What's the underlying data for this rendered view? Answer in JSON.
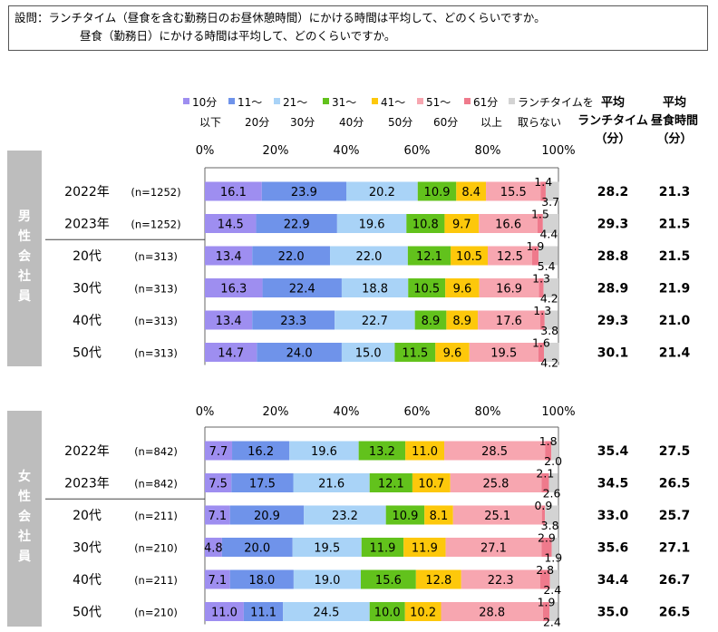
{
  "question": {
    "line1": "設問：ランチタイム（昼食を含む勤務日のお昼休憩時間）にかける時間は平均して、どのくらいですか。",
    "line2": "昼食（勤務日）にかける時間は平均して、どのくらいですか。"
  },
  "legend": [
    {
      "top": "10分",
      "bottom": "以下",
      "color": "#9e8ef0"
    },
    {
      "top": "11～",
      "bottom": "20分",
      "color": "#6f93ea"
    },
    {
      "top": "21～",
      "bottom": "30分",
      "color": "#a9d3f7"
    },
    {
      "top": "31～",
      "bottom": "40分",
      "color": "#62c21c"
    },
    {
      "top": "41～",
      "bottom": "50分",
      "color": "#fdc80b"
    },
    {
      "top": "51～",
      "bottom": "60分",
      "color": "#f7a6b0"
    },
    {
      "top": "61分",
      "bottom": "以上",
      "color": "#ef7a8c"
    },
    {
      "top": "ランチタイムを",
      "bottom": "取らない",
      "color": "#d3d3d3"
    }
  ],
  "column_headers": {
    "lunch": [
      "平均",
      "ランチタイム",
      "（分）"
    ],
    "meal": [
      "平均",
      "昼食時間",
      "（分）"
    ]
  },
  "axis_ticks": [
    "0%",
    "20%",
    "40%",
    "60%",
    "80%",
    "100%"
  ],
  "chart_data": {
    "type": "bar",
    "stacked": true,
    "orientation": "horizontal",
    "xlim": [
      0,
      100
    ],
    "series_names": [
      "10分以下",
      "11～20分",
      "21～30分",
      "31～40分",
      "41～50分",
      "51～60分",
      "61分以上",
      "ランチタイムを取らない"
    ],
    "groups": [
      {
        "side_label": [
          "男",
          "性",
          "会",
          "社",
          "員"
        ],
        "rows": [
          {
            "label": "2022年",
            "n": "(n=1252)",
            "values": [
              16.1,
              23.9,
              20.2,
              10.9,
              8.4,
              15.5,
              1.4,
              3.7
            ],
            "avg_lunch": "28.2",
            "avg_meal": "21.3"
          },
          {
            "label": "2023年",
            "n": "(n=1252)",
            "values": [
              14.5,
              22.9,
              19.6,
              10.8,
              9.7,
              16.6,
              1.5,
              4.4
            ],
            "avg_lunch": "29.3",
            "avg_meal": "21.5"
          },
          {
            "label": "20代",
            "n": "(n=313)",
            "values": [
              13.4,
              22.0,
              22.0,
              12.1,
              10.5,
              12.5,
              1.9,
              5.4
            ],
            "avg_lunch": "28.8",
            "avg_meal": "21.5"
          },
          {
            "label": "30代",
            "n": "(n=313)",
            "values": [
              16.3,
              22.4,
              18.8,
              10.5,
              9.6,
              16.9,
              1.3,
              4.2
            ],
            "avg_lunch": "28.9",
            "avg_meal": "21.9"
          },
          {
            "label": "40代",
            "n": "(n=313)",
            "values": [
              13.4,
              23.3,
              22.7,
              8.9,
              8.9,
              17.6,
              1.3,
              3.8
            ],
            "avg_lunch": "29.3",
            "avg_meal": "21.0"
          },
          {
            "label": "50代",
            "n": "(n=313)",
            "values": [
              14.7,
              24.0,
              15.0,
              11.5,
              9.6,
              19.5,
              1.6,
              4.2
            ],
            "avg_lunch": "30.1",
            "avg_meal": "21.4"
          }
        ]
      },
      {
        "side_label": [
          "女",
          "性",
          "会",
          "社",
          "員"
        ],
        "rows": [
          {
            "label": "2022年",
            "n": "(n=842)",
            "values": [
              7.7,
              16.2,
              19.6,
              13.2,
              11.0,
              28.5,
              1.8,
              2.0
            ],
            "avg_lunch": "35.4",
            "avg_meal": "27.5"
          },
          {
            "label": "2023年",
            "n": "(n=842)",
            "values": [
              7.5,
              17.5,
              21.6,
              12.1,
              10.7,
              25.8,
              2.1,
              2.6
            ],
            "avg_lunch": "34.5",
            "avg_meal": "26.5"
          },
          {
            "label": "20代",
            "n": "(n=211)",
            "values": [
              7.1,
              20.9,
              23.2,
              10.9,
              8.1,
              25.1,
              0.9,
              3.8
            ],
            "avg_lunch": "33.0",
            "avg_meal": "25.7"
          },
          {
            "label": "30代",
            "n": "(n=210)",
            "values": [
              4.8,
              20.0,
              19.5,
              11.9,
              11.9,
              27.1,
              2.9,
              1.9
            ],
            "avg_lunch": "35.6",
            "avg_meal": "27.1"
          },
          {
            "label": "40代",
            "n": "(n=211)",
            "values": [
              7.1,
              18.0,
              19.0,
              15.6,
              12.8,
              22.3,
              2.8,
              2.4
            ],
            "avg_lunch": "34.4",
            "avg_meal": "26.7"
          },
          {
            "label": "50代",
            "n": "(n=210)",
            "values": [
              11.0,
              11.1,
              24.5,
              10.0,
              10.2,
              28.8,
              1.9,
              2.4
            ],
            "avg_lunch": "35.0",
            "avg_meal": "26.5"
          }
        ]
      }
    ]
  }
}
